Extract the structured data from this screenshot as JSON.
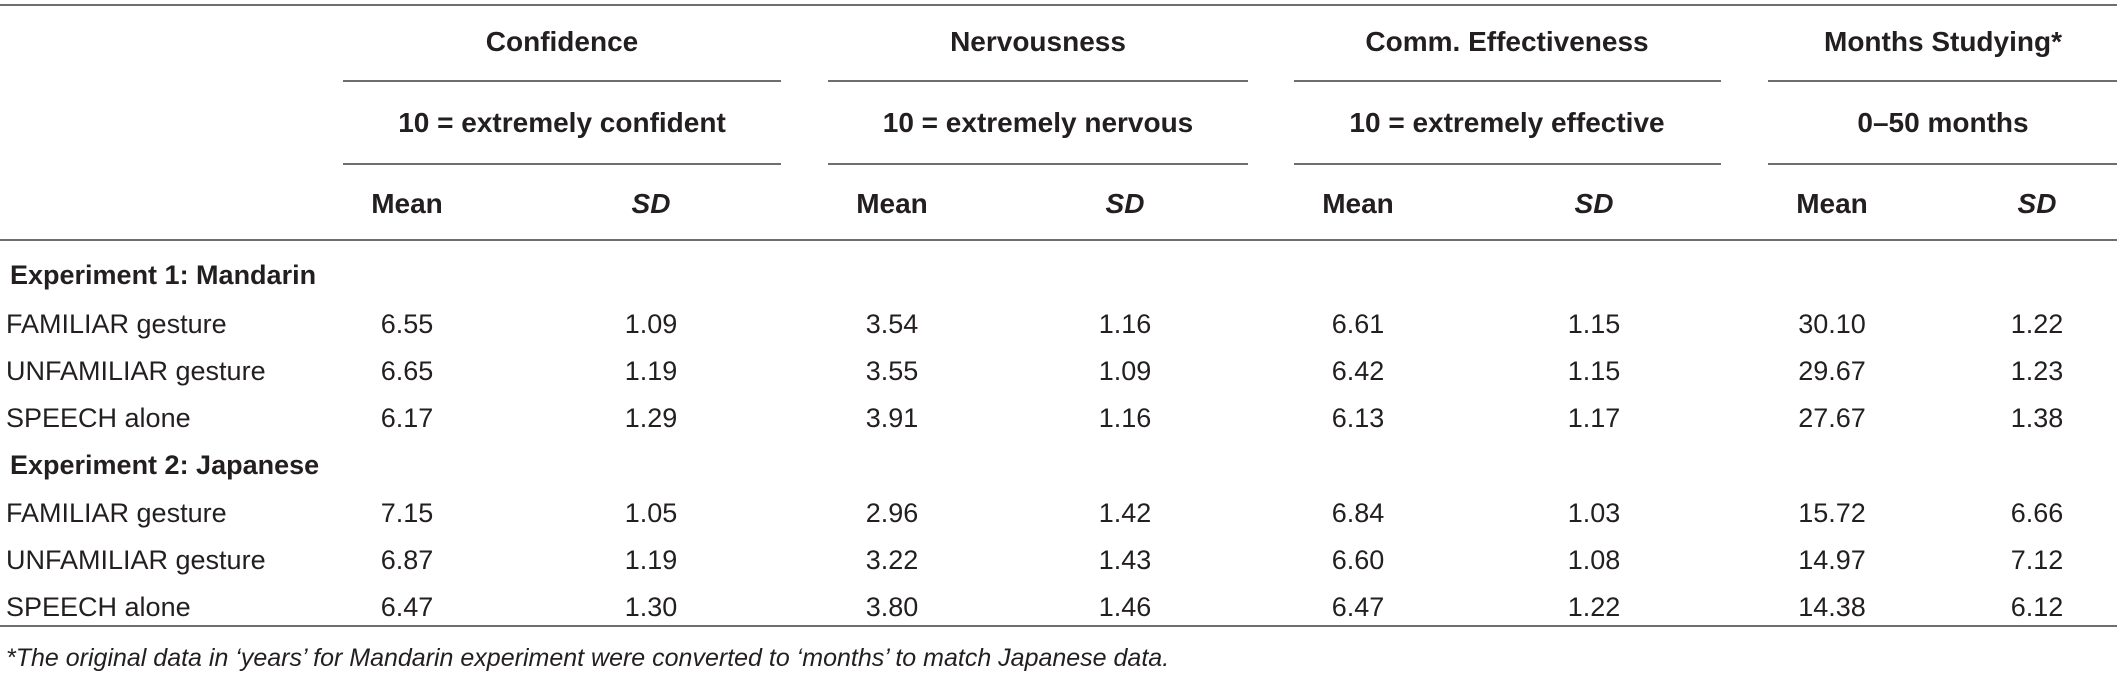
{
  "table": {
    "groups": [
      {
        "title": "Confidence",
        "scale": "10 = extremely confident"
      },
      {
        "title": "Nervousness",
        "scale": "10 = extremely nervous"
      },
      {
        "title": "Comm. Effectiveness",
        "scale": "10 = extremely effective"
      },
      {
        "title": "Months Studying*",
        "scale": "0–50 months"
      }
    ],
    "stat_labels": {
      "mean": "Mean",
      "sd": "SD"
    },
    "sections": [
      {
        "title": "Experiment 1: Mandarin",
        "rows": [
          {
            "label": "FAMILIAR gesture",
            "values": [
              "6.55",
              "1.09",
              "3.54",
              "1.16",
              "6.61",
              "1.15",
              "30.10",
              "1.22"
            ]
          },
          {
            "label": "UNFAMILIAR gesture",
            "values": [
              "6.65",
              "1.19",
              "3.55",
              "1.09",
              "6.42",
              "1.15",
              "29.67",
              "1.23"
            ]
          },
          {
            "label": "SPEECH alone",
            "values": [
              "6.17",
              "1.29",
              "3.91",
              "1.16",
              "6.13",
              "1.17",
              "27.67",
              "1.38"
            ]
          }
        ]
      },
      {
        "title": "Experiment 2: Japanese",
        "rows": [
          {
            "label": "FAMILIAR gesture",
            "values": [
              "7.15",
              "1.05",
              "2.96",
              "1.42",
              "6.84",
              "1.03",
              "15.72",
              "6.66"
            ]
          },
          {
            "label": "UNFAMILIAR gesture",
            "values": [
              "6.87",
              "1.19",
              "3.22",
              "1.43",
              "6.60",
              "1.08",
              "14.97",
              "7.12"
            ]
          },
          {
            "label": "SPEECH alone",
            "values": [
              "6.47",
              "1.30",
              "3.80",
              "1.46",
              "6.47",
              "1.22",
              "14.38",
              "6.12"
            ]
          }
        ]
      }
    ],
    "footnote": "*The original data in ‘years’ for Mandarin experiment were converted to ‘months’ to match Japanese data."
  }
}
